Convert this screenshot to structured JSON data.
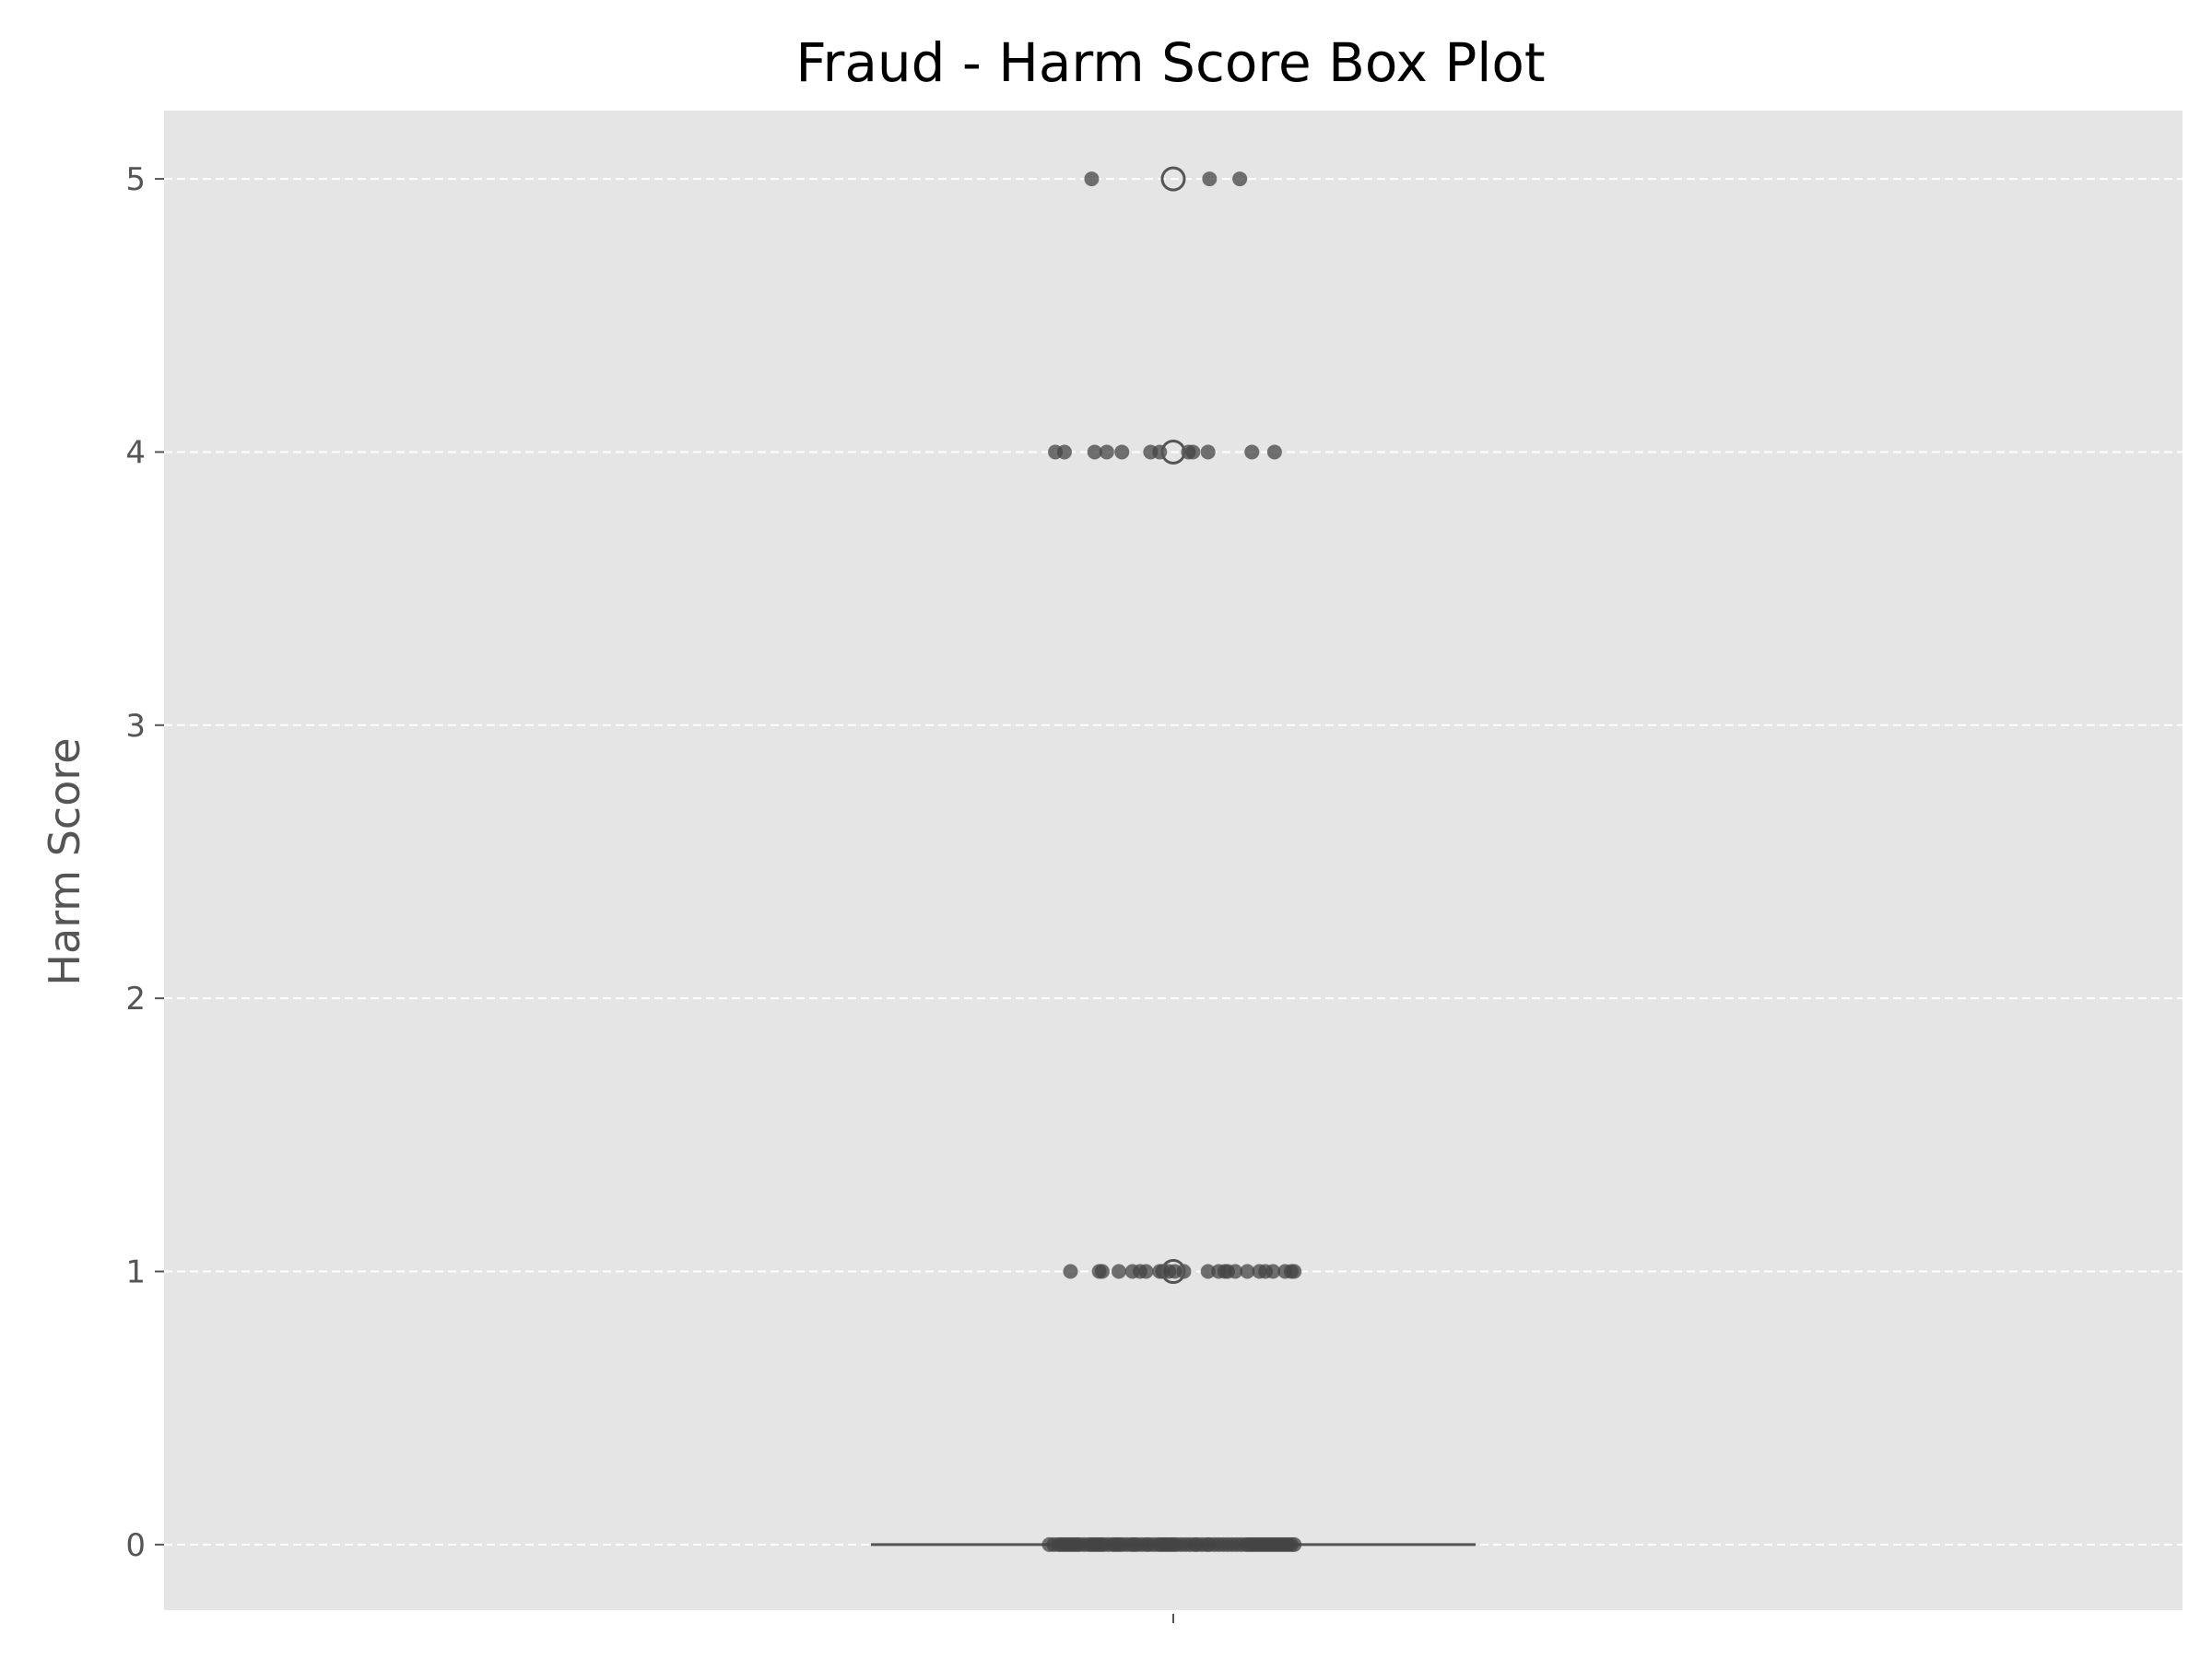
{
  "chart_data": {
    "type": "box",
    "title": "Fraud - Harm Score Box Plot",
    "xlabel": "",
    "ylabel": "Harm Score",
    "ylim": [
      -0.24,
      5.25
    ],
    "yticks": [
      0,
      1,
      2,
      3,
      4,
      5
    ],
    "grid": true,
    "grid_style": "dashed-horizontal",
    "legend": "none",
    "colors": {
      "plot_background": "#e5e5e5",
      "grid": "#ffffff",
      "points": "#444444",
      "box_line": "#555555",
      "tick_text": "#555555"
    },
    "box": {
      "min": 0,
      "q1": 0,
      "median": 0,
      "q3": 0,
      "max": 0
    },
    "outliers": [
      1,
      4,
      5
    ],
    "jittered_points": [
      {
        "y": 5,
        "x": [
          -0.27,
          0.12,
          0.22
        ]
      },
      {
        "y": 4,
        "x": [
          -0.39,
          -0.36,
          -0.26,
          -0.22,
          -0.17,
          -0.075,
          -0.045,
          0.05,
          0.065,
          0.115,
          0.26,
          0.335
        ]
      },
      {
        "y": 1,
        "x": [
          -0.34,
          -0.245,
          -0.235,
          -0.18,
          -0.135,
          -0.11,
          -0.09,
          -0.045,
          -0.035,
          -0.015,
          0.005,
          0.035,
          0.115,
          0.15,
          0.17,
          0.18,
          0.205,
          0.245,
          0.285,
          0.305,
          0.33,
          0.37,
          0.39,
          0.4
        ]
      },
      {
        "y": 0,
        "x": [
          -0.41,
          -0.395,
          -0.38,
          -0.37,
          -0.36,
          -0.35,
          -0.34,
          -0.33,
          -0.32,
          -0.31,
          -0.295,
          -0.28,
          -0.27,
          -0.26,
          -0.25,
          -0.24,
          -0.23,
          -0.215,
          -0.2,
          -0.19,
          -0.18,
          -0.17,
          -0.155,
          -0.14,
          -0.13,
          -0.12,
          -0.105,
          -0.09,
          -0.08,
          -0.065,
          -0.05,
          -0.04,
          -0.03,
          -0.02,
          -0.01,
          0.0,
          0.01,
          0.025,
          0.04,
          0.055,
          0.07,
          0.08,
          0.095,
          0.11,
          0.12,
          0.135,
          0.15,
          0.165,
          0.18,
          0.195,
          0.21,
          0.225,
          0.24,
          0.25,
          0.26,
          0.27,
          0.28,
          0.29,
          0.3,
          0.31,
          0.32,
          0.33,
          0.34,
          0.35,
          0.36,
          0.37,
          0.38,
          0.39,
          0.4
        ]
      }
    ]
  }
}
